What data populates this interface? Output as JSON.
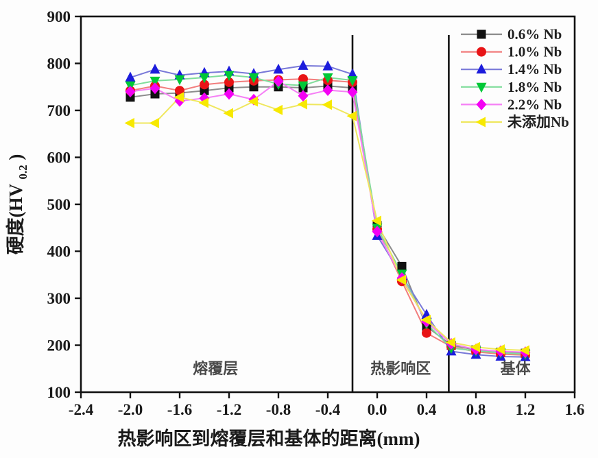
{
  "chart_data": {
    "type": "line",
    "title": "",
    "xlabel": "热影响区到熔覆层和基体的距离(mm)",
    "ylabel": {
      "main": "硬度(HV",
      "sub": "0.2",
      "end": ")"
    },
    "xlim": [
      -2.4,
      1.6
    ],
    "ylim": [
      100,
      900
    ],
    "xticks": [
      "-2.4",
      "-2.0",
      "-1.6",
      "-1.2",
      "-0.8",
      "-0.4",
      "0.0",
      "0.4",
      "0.8",
      "1.2",
      "1.6"
    ],
    "yticks": [
      "100",
      "200",
      "300",
      "400",
      "500",
      "600",
      "700",
      "800",
      "900"
    ],
    "grid": false,
    "legend_position": "top-right",
    "x": [
      -2.0,
      -1.8,
      -1.6,
      -1.4,
      -1.2,
      -1.0,
      -0.8,
      -0.6,
      -0.4,
      -0.2,
      0.0,
      0.2,
      0.4,
      0.6,
      0.8,
      1.0,
      1.2
    ],
    "series": [
      {
        "name": "0.6% Nb",
        "marker": "square",
        "color": "#111111",
        "line_color": "#8c8c8c",
        "values": [
          728,
          735,
          737,
          742,
          748,
          750,
          750,
          748,
          752,
          748,
          455,
          368,
          240,
          200,
          190,
          185,
          183
        ]
      },
      {
        "name": "1.0% Nb",
        "marker": "circle",
        "color": "#e81416",
        "line_color": "#f27d7d",
        "values": [
          742,
          752,
          742,
          755,
          760,
          763,
          765,
          767,
          764,
          760,
          447,
          336,
          226,
          197,
          186,
          181,
          179
        ]
      },
      {
        "name": "1.4% Nb",
        "marker": "triangle-up",
        "color": "#1c1cdc",
        "line_color": "#7878d8",
        "values": [
          770,
          787,
          775,
          780,
          783,
          778,
          787,
          795,
          794,
          777,
          433,
          348,
          265,
          187,
          180,
          176,
          175
        ]
      },
      {
        "name": "1.8% Nb",
        "marker": "triangle-down",
        "color": "#00c837",
        "line_color": "#7fdd9b",
        "values": [
          753,
          763,
          766,
          770,
          775,
          770,
          756,
          753,
          770,
          764,
          450,
          352,
          246,
          194,
          188,
          184,
          181
        ]
      },
      {
        "name": "2.2% Nb",
        "marker": "diamond",
        "color": "#f400f4",
        "line_color": "#f going"
      },
      {
        "name": "未添加Nb",
        "marker": "triangle-left",
        "color": "#f7e900",
        "line_color": "#efe75e",
        "values": [
          673,
          673,
          728,
          716,
          694,
          719,
          701,
          713,
          712,
          688,
          465,
          339,
          254,
          206,
          196,
          191,
          189
        ]
      }
    ],
    "dividers": [
      -0.2,
      0.58
    ],
    "annotations": [
      {
        "label": "熔覆层",
        "x": -1.31
      },
      {
        "label": "热影响区",
        "x": 0.19
      },
      {
        "label": "基体",
        "x": 1.12
      }
    ]
  }
}
